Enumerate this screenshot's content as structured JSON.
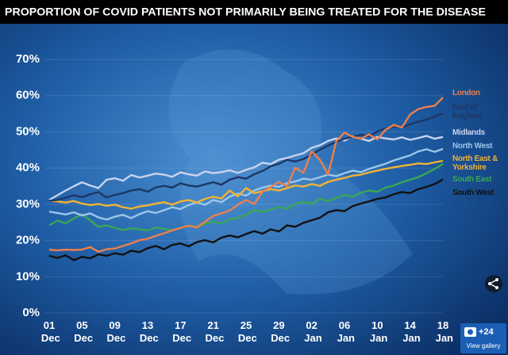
{
  "chart_data": {
    "type": "line",
    "title": "PROPORTION OF COVID PATIENTS NOT PRIMARILY BEING TREATED FOR THE DISEASE",
    "categories": [
      "01 Dec",
      null,
      null,
      null,
      "05 Dec",
      null,
      null,
      null,
      "09 Dec",
      null,
      null,
      null,
      "13 Dec",
      null,
      null,
      null,
      "17 Dec",
      null,
      null,
      null,
      "21 Dec",
      null,
      null,
      null,
      "25 Dec",
      null,
      null,
      null,
      "29 Dec",
      null,
      null,
      null,
      "02 Jan",
      null,
      null,
      null,
      "06 Jan",
      null,
      null,
      null,
      "10 Jan",
      null,
      null,
      null,
      "14 Jan",
      null,
      null,
      null,
      "18 Jan"
    ],
    "ylim": [
      0,
      70
    ],
    "yticks": [
      {
        "value": 0,
        "label": "0%"
      },
      {
        "value": 10,
        "label": "10%"
      },
      {
        "value": 20,
        "label": "20%"
      },
      {
        "value": 30,
        "label": "30%"
      },
      {
        "value": 40,
        "label": "40%"
      },
      {
        "value": 50,
        "label": "50%"
      },
      {
        "value": 60,
        "label": "60%"
      },
      {
        "value": 70,
        "label": "70%"
      }
    ],
    "grid": true,
    "series": [
      {
        "name": "South West",
        "color": "#111111",
        "values": [
          15.8,
          15.2,
          15.9,
          14.6,
          15.5,
          15.1,
          16.2,
          15.8,
          16.5,
          16.1,
          17.2,
          16.8,
          17.9,
          18.5,
          17.6,
          18.8,
          19.2,
          18.4,
          19.6,
          20.1,
          19.5,
          20.8,
          21.4,
          20.9,
          21.8,
          22.6,
          21.9,
          23.1,
          22.5,
          24.2,
          23.8,
          24.9,
          25.6,
          26.3,
          27.8,
          28.4,
          28.1,
          29.5,
          30.2,
          30.8,
          31.5,
          31.9,
          32.8,
          33.4,
          33.1,
          34.2,
          34.8,
          35.6,
          36.9
        ]
      },
      {
        "name": "South East",
        "color": "#3aa655",
        "values": [
          24.2,
          25.5,
          24.8,
          26.1,
          27.3,
          25.6,
          23.8,
          24.2,
          23.5,
          22.9,
          23.4,
          23.1,
          22.8,
          23.6,
          23.2,
          22.9,
          23.5,
          24.1,
          23.8,
          24.6,
          25.2,
          24.7,
          25.8,
          26.3,
          27.1,
          28.4,
          27.9,
          28.6,
          29.2,
          28.8,
          30.1,
          30.7,
          30.2,
          31.5,
          30.9,
          31.8,
          32.6,
          32.1,
          33.2,
          33.8,
          33.5,
          34.6,
          35.2,
          36.1,
          36.8,
          37.5,
          38.6,
          39.8,
          41.2
        ]
      },
      {
        "name": "North West",
        "color": "#9cc6ea",
        "values": [
          28.0,
          27.6,
          27.2,
          27.8,
          26.9,
          27.5,
          26.4,
          25.8,
          26.6,
          27.1,
          26.2,
          27.3,
          28.1,
          27.6,
          28.4,
          29.2,
          28.7,
          29.8,
          30.5,
          29.9,
          31.2,
          30.6,
          32.1,
          33.0,
          32.4,
          33.8,
          34.6,
          35.2,
          34.8,
          35.9,
          36.3,
          37.1,
          36.8,
          37.5,
          38.2,
          37.8,
          38.6,
          39.3,
          38.9,
          39.8,
          40.5,
          41.2,
          42.1,
          42.8,
          43.5,
          44.6,
          45.2,
          44.5,
          45.3
        ]
      },
      {
        "name": "North East & Yorkshire",
        "color": "#f2b233",
        "values": [
          31.0,
          30.8,
          30.5,
          30.9,
          30.2,
          29.8,
          30.1,
          29.6,
          29.9,
          29.2,
          28.8,
          29.4,
          29.7,
          30.2,
          30.6,
          29.9,
          30.8,
          31.2,
          30.5,
          31.5,
          32.1,
          31.6,
          33.8,
          32.2,
          34.5,
          33.1,
          33.6,
          34.2,
          33.8,
          34.5,
          35.2,
          34.9,
          35.6,
          35.1,
          36.2,
          36.8,
          37.3,
          37.9,
          38.2,
          38.8,
          39.3,
          39.8,
          40.2,
          40.6,
          40.9,
          41.3,
          41.1,
          41.6,
          42.0
        ]
      },
      {
        "name": "Midlands",
        "color": "#c9d3ee",
        "values": [
          31.2,
          32.5,
          33.8,
          35.0,
          36.1,
          35.2,
          34.5,
          36.8,
          37.2,
          36.5,
          38.1,
          37.4,
          37.9,
          38.5,
          38.2,
          37.6,
          38.8,
          38.3,
          37.9,
          39.1,
          38.6,
          38.9,
          39.4,
          38.7,
          39.5,
          40.2,
          41.5,
          41.1,
          42.3,
          42.8,
          43.5,
          44.1,
          45.6,
          46.3,
          47.5,
          48.2,
          47.6,
          48.8,
          48.1,
          47.5,
          48.6,
          48.2,
          47.9,
          48.5,
          47.8,
          48.3,
          48.9,
          48.1,
          48.6
        ]
      },
      {
        "name": "East of England",
        "color": "#1d3766",
        "values": [
          31.0,
          31.2,
          31.8,
          32.5,
          32.0,
          32.8,
          33.4,
          31.9,
          32.6,
          33.1,
          33.8,
          34.2,
          33.5,
          34.7,
          35.1,
          34.6,
          35.8,
          35.2,
          34.9,
          35.5,
          36.1,
          35.4,
          36.8,
          37.5,
          37.1,
          38.3,
          39.2,
          40.5,
          41.2,
          42.3,
          41.8,
          42.5,
          43.7,
          45.1,
          46.2,
          47.3,
          48.1,
          48.6,
          49.2,
          48.8,
          50.1,
          50.9,
          51.5,
          51.2,
          52.1,
          52.8,
          53.4,
          54.2,
          55.1
        ]
      },
      {
        "name": "London",
        "color": "#ec7f4c",
        "values": [
          17.5,
          17.3,
          17.5,
          17.4,
          17.5,
          18.2,
          16.9,
          17.6,
          17.8,
          18.5,
          19.2,
          20.1,
          20.5,
          21.3,
          22.0,
          22.8,
          23.5,
          24.1,
          23.6,
          25.2,
          26.8,
          27.5,
          28.3,
          29.9,
          31.2,
          30.1,
          33.5,
          34.8,
          36.2,
          35.0,
          40.1,
          38.7,
          44.6,
          42.3,
          38.2,
          47.5,
          49.8,
          48.6,
          48.1,
          49.3,
          47.9,
          50.6,
          51.9,
          51.2,
          54.8,
          56.3,
          56.9,
          57.2,
          59.5
        ]
      }
    ]
  },
  "gallery": {
    "count": "+24",
    "label": "View gallery"
  }
}
